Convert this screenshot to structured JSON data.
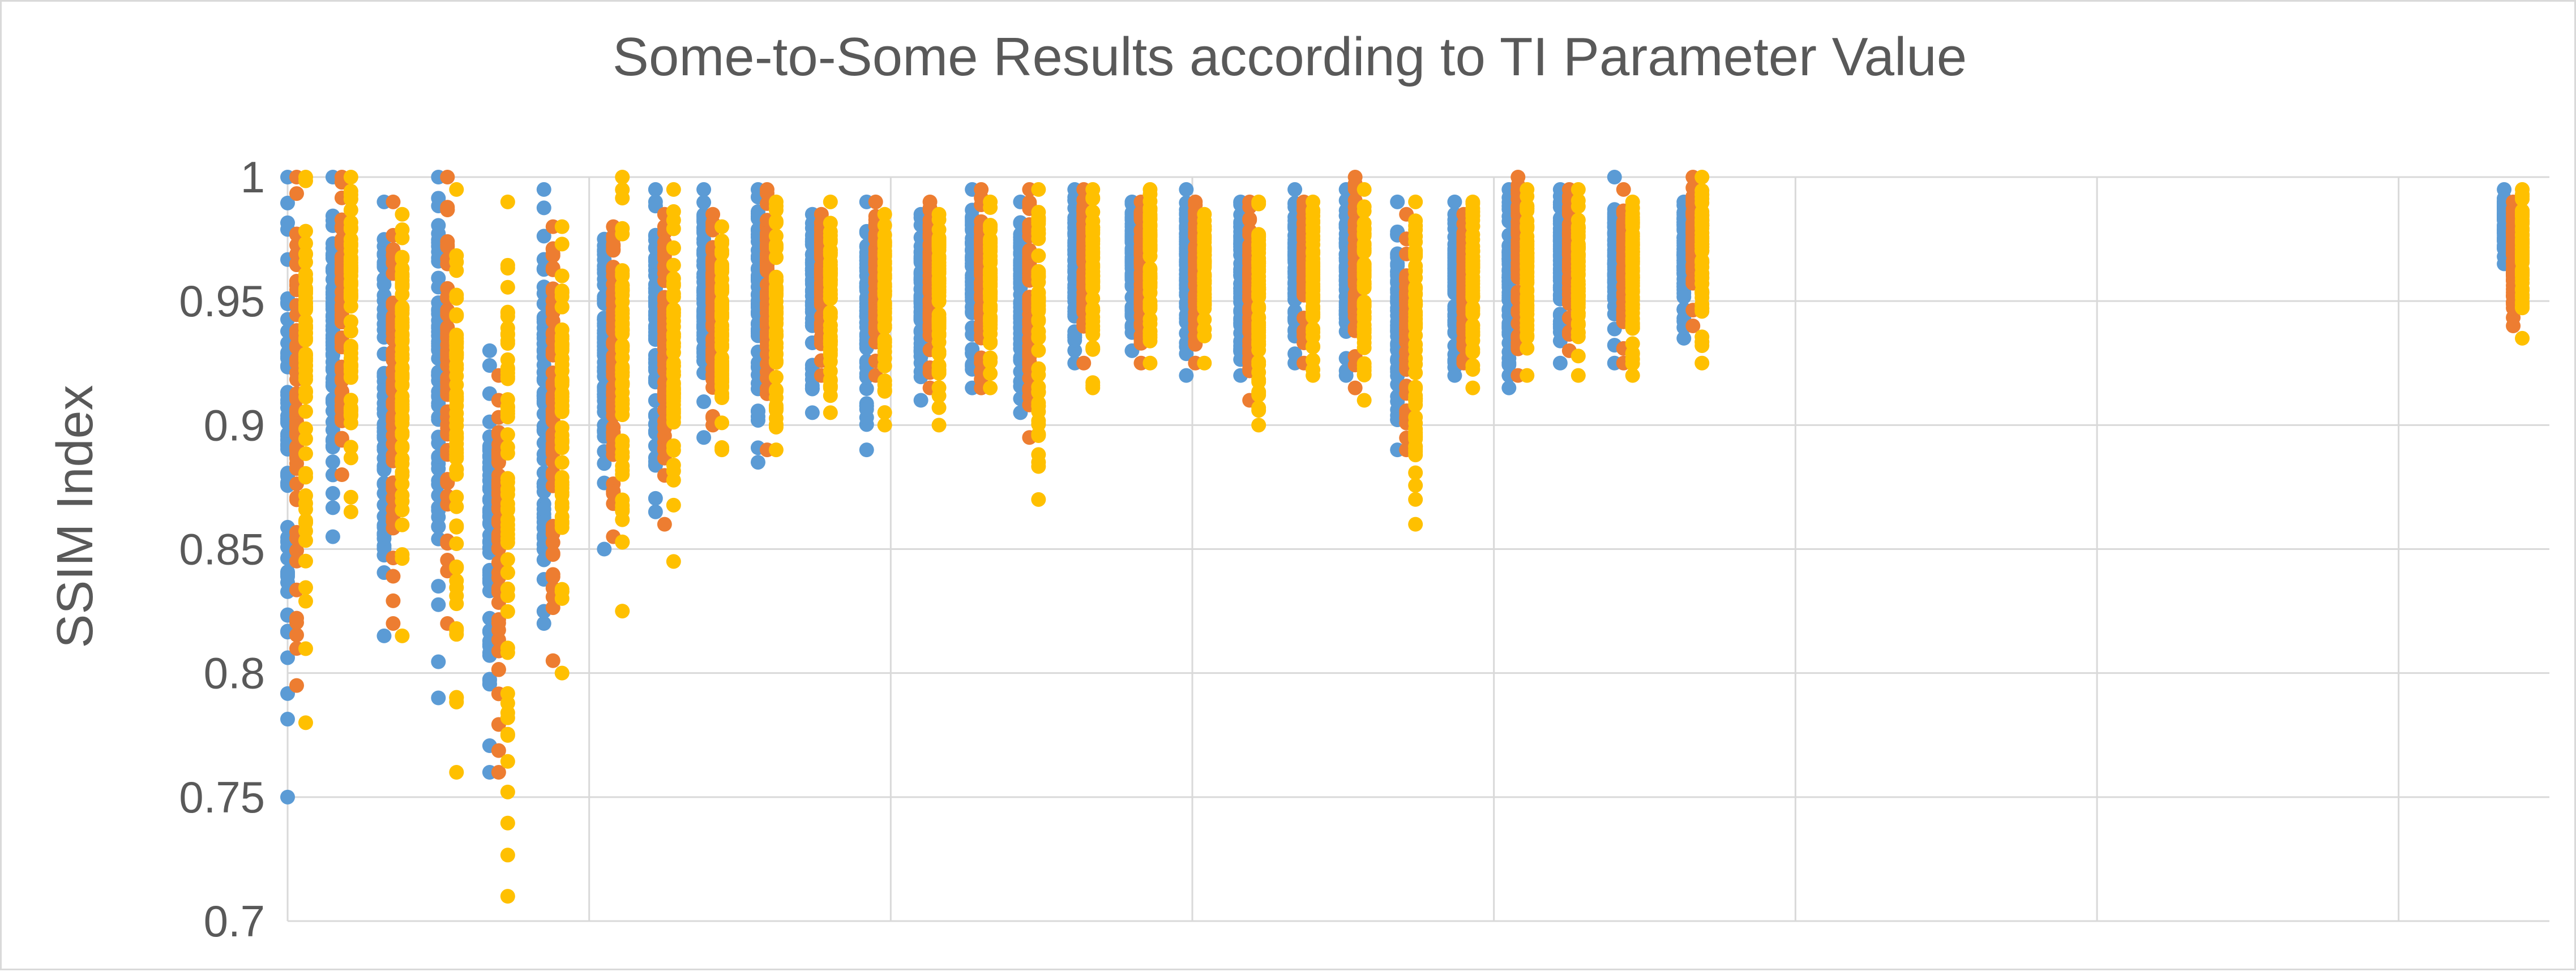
{
  "chart_data": {
    "type": "scatter",
    "title": "Some-to-Some Results according to TI Parameter Value",
    "xlabel": "",
    "ylabel": "SSIM Index",
    "ylim": [
      0.7,
      1.0
    ],
    "yticks": [
      "0.7",
      "0.75",
      "0.8",
      "0.85",
      "0.9",
      "0.95",
      "1"
    ],
    "ytick_values": [
      0.7,
      0.75,
      0.8,
      0.85,
      0.9,
      0.95,
      1.0
    ],
    "xlim": [
      0,
      75
    ],
    "x_gridlines": [
      0,
      10,
      20,
      30,
      40,
      50,
      60,
      70
    ],
    "grid": true,
    "legend": "none",
    "series_colors": [
      "#5b9bd5",
      "#ed7d31",
      "#ffc000"
    ],
    "series": [
      {
        "color": "#5b9bd5",
        "clusters": [
          {
            "x": 0.0,
            "min": 0.75,
            "max": 1.0
          },
          {
            "x": 1.5,
            "min": 0.855,
            "max": 1.0
          },
          {
            "x": 3.2,
            "min": 0.815,
            "max": 0.99
          },
          {
            "x": 5.0,
            "min": 0.79,
            "max": 1.0
          },
          {
            "x": 6.7,
            "min": 0.76,
            "max": 0.93
          },
          {
            "x": 8.5,
            "min": 0.82,
            "max": 0.995
          },
          {
            "x": 10.5,
            "min": 0.85,
            "max": 0.975
          },
          {
            "x": 12.2,
            "min": 0.865,
            "max": 0.995
          },
          {
            "x": 13.8,
            "min": 0.895,
            "max": 0.995
          },
          {
            "x": 15.6,
            "min": 0.885,
            "max": 0.995
          },
          {
            "x": 17.4,
            "min": 0.905,
            "max": 0.985
          },
          {
            "x": 19.2,
            "min": 0.89,
            "max": 0.99
          },
          {
            "x": 21.0,
            "min": 0.91,
            "max": 0.985
          },
          {
            "x": 22.7,
            "min": 0.915,
            "max": 0.995
          },
          {
            "x": 24.3,
            "min": 0.905,
            "max": 0.99
          },
          {
            "x": 26.1,
            "min": 0.925,
            "max": 0.995
          },
          {
            "x": 28.0,
            "min": 0.93,
            "max": 0.99
          },
          {
            "x": 29.8,
            "min": 0.92,
            "max": 0.995
          },
          {
            "x": 31.6,
            "min": 0.92,
            "max": 0.99
          },
          {
            "x": 33.4,
            "min": 0.925,
            "max": 0.995
          },
          {
            "x": 35.1,
            "min": 0.92,
            "max": 0.995
          },
          {
            "x": 36.8,
            "min": 0.89,
            "max": 0.99
          },
          {
            "x": 38.7,
            "min": 0.92,
            "max": 0.99
          },
          {
            "x": 40.5,
            "min": 0.915,
            "max": 0.995
          },
          {
            "x": 42.2,
            "min": 0.925,
            "max": 0.995
          },
          {
            "x": 44.0,
            "min": 0.925,
            "max": 1.0
          },
          {
            "x": 46.3,
            "min": 0.935,
            "max": 0.99
          },
          {
            "x": 73.5,
            "min": 0.965,
            "max": 0.995
          }
        ]
      },
      {
        "color": "#ed7d31",
        "clusters": [
          {
            "x": 0.3,
            "min": 0.795,
            "max": 1.0
          },
          {
            "x": 1.8,
            "min": 0.88,
            "max": 1.0
          },
          {
            "x": 3.5,
            "min": 0.82,
            "max": 0.99
          },
          {
            "x": 5.3,
            "min": 0.82,
            "max": 1.0
          },
          {
            "x": 7.0,
            "min": 0.76,
            "max": 0.92
          },
          {
            "x": 8.8,
            "min": 0.805,
            "max": 0.98
          },
          {
            "x": 10.8,
            "min": 0.855,
            "max": 0.98
          },
          {
            "x": 12.5,
            "min": 0.86,
            "max": 0.985
          },
          {
            "x": 14.1,
            "min": 0.9,
            "max": 0.985
          },
          {
            "x": 15.9,
            "min": 0.89,
            "max": 0.995
          },
          {
            "x": 17.7,
            "min": 0.92,
            "max": 0.985
          },
          {
            "x": 19.5,
            "min": 0.92,
            "max": 0.99
          },
          {
            "x": 21.3,
            "min": 0.915,
            "max": 0.99
          },
          {
            "x": 23.0,
            "min": 0.915,
            "max": 0.995
          },
          {
            "x": 24.6,
            "min": 0.895,
            "max": 0.995
          },
          {
            "x": 26.4,
            "min": 0.925,
            "max": 0.995
          },
          {
            "x": 28.3,
            "min": 0.925,
            "max": 0.99
          },
          {
            "x": 30.1,
            "min": 0.925,
            "max": 0.99
          },
          {
            "x": 31.9,
            "min": 0.91,
            "max": 0.99
          },
          {
            "x": 33.7,
            "min": 0.925,
            "max": 0.99
          },
          {
            "x": 35.4,
            "min": 0.915,
            "max": 1.0
          },
          {
            "x": 37.1,
            "min": 0.89,
            "max": 0.985
          },
          {
            "x": 39.0,
            "min": 0.925,
            "max": 0.985
          },
          {
            "x": 40.8,
            "min": 0.92,
            "max": 1.0
          },
          {
            "x": 42.5,
            "min": 0.93,
            "max": 0.995
          },
          {
            "x": 44.3,
            "min": 0.925,
            "max": 0.995
          },
          {
            "x": 46.6,
            "min": 0.94,
            "max": 1.0
          },
          {
            "x": 73.8,
            "min": 0.94,
            "max": 0.99
          }
        ]
      },
      {
        "color": "#ffc000",
        "clusters": [
          {
            "x": 0.6,
            "min": 0.78,
            "max": 1.0
          },
          {
            "x": 2.1,
            "min": 0.865,
            "max": 1.0
          },
          {
            "x": 3.8,
            "min": 0.815,
            "max": 0.985
          },
          {
            "x": 5.6,
            "min": 0.76,
            "max": 0.995
          },
          {
            "x": 7.3,
            "min": 0.71,
            "max": 0.99
          },
          {
            "x": 9.1,
            "min": 0.8,
            "max": 0.98
          },
          {
            "x": 11.1,
            "min": 0.825,
            "max": 1.0
          },
          {
            "x": 12.8,
            "min": 0.845,
            "max": 0.995
          },
          {
            "x": 14.4,
            "min": 0.89,
            "max": 0.98
          },
          {
            "x": 16.2,
            "min": 0.89,
            "max": 0.99
          },
          {
            "x": 18.0,
            "min": 0.905,
            "max": 0.99
          },
          {
            "x": 19.8,
            "min": 0.9,
            "max": 0.985
          },
          {
            "x": 21.6,
            "min": 0.9,
            "max": 0.985
          },
          {
            "x": 23.3,
            "min": 0.915,
            "max": 0.99
          },
          {
            "x": 24.9,
            "min": 0.87,
            "max": 0.995
          },
          {
            "x": 26.7,
            "min": 0.915,
            "max": 0.995
          },
          {
            "x": 28.6,
            "min": 0.925,
            "max": 0.995
          },
          {
            "x": 30.4,
            "min": 0.925,
            "max": 0.985
          },
          {
            "x": 32.2,
            "min": 0.9,
            "max": 0.99
          },
          {
            "x": 34.0,
            "min": 0.92,
            "max": 0.99
          },
          {
            "x": 35.7,
            "min": 0.91,
            "max": 0.995
          },
          {
            "x": 37.4,
            "min": 0.86,
            "max": 0.99
          },
          {
            "x": 39.3,
            "min": 0.915,
            "max": 0.99
          },
          {
            "x": 41.1,
            "min": 0.92,
            "max": 0.995
          },
          {
            "x": 42.8,
            "min": 0.92,
            "max": 0.995
          },
          {
            "x": 44.6,
            "min": 0.92,
            "max": 0.99
          },
          {
            "x": 46.9,
            "min": 0.925,
            "max": 1.0
          },
          {
            "x": 74.1,
            "min": 0.935,
            "max": 0.995
          }
        ]
      }
    ]
  }
}
